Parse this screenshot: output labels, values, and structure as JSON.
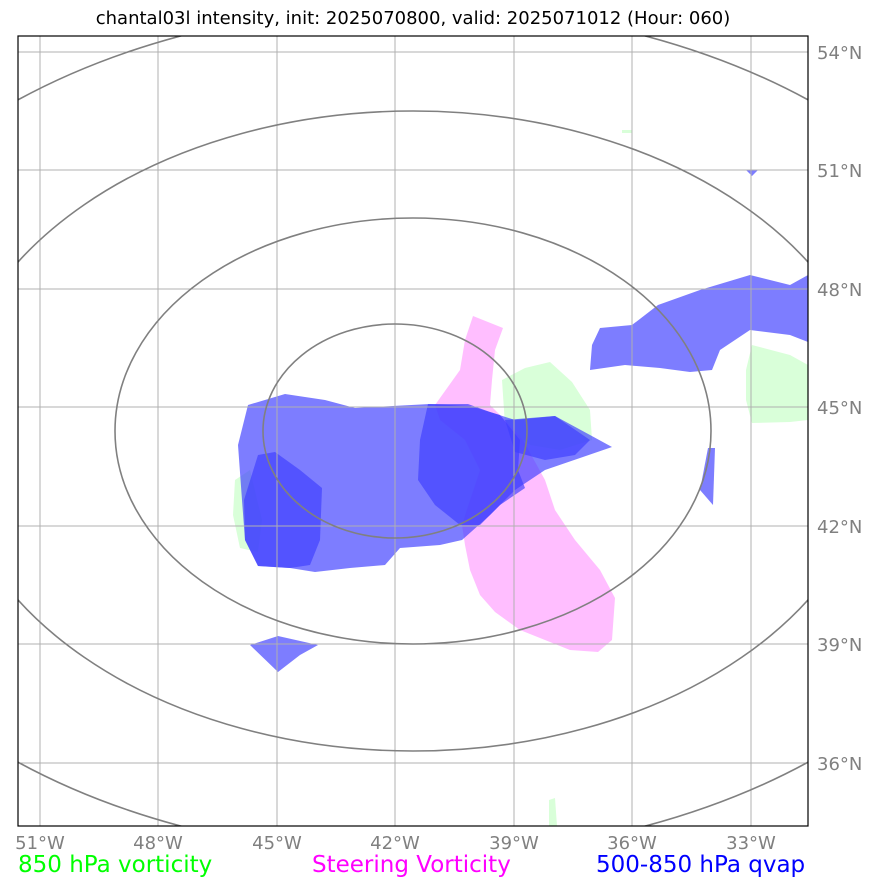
{
  "title": "chantal03l intensity, init: 2025070800, valid: 2025071012 (Hour: 060)",
  "map": {
    "lon_ticks": [
      "51°W",
      "48°W",
      "45°W",
      "42°W",
      "39°W",
      "36°W",
      "33°W"
    ],
    "lat_ticks": [
      "54°N",
      "51°N",
      "48°N",
      "45°N",
      "42°N",
      "39°N",
      "36°N"
    ],
    "gridline_color": "#b0b0b0",
    "contour_color": "#808080"
  },
  "legend": [
    {
      "label": "850 hPa vorticity",
      "color": "#00ff00"
    },
    {
      "label": "Steering Vorticity",
      "color": "#ff00ff"
    },
    {
      "label": "500-850 hPa qvap",
      "color": "#0000ff"
    }
  ],
  "layers": {
    "vorticity_850_color": "#ccffcc",
    "steering_vorticity_color": "#ffb3ff",
    "qvap_color": "#4040ff"
  }
}
